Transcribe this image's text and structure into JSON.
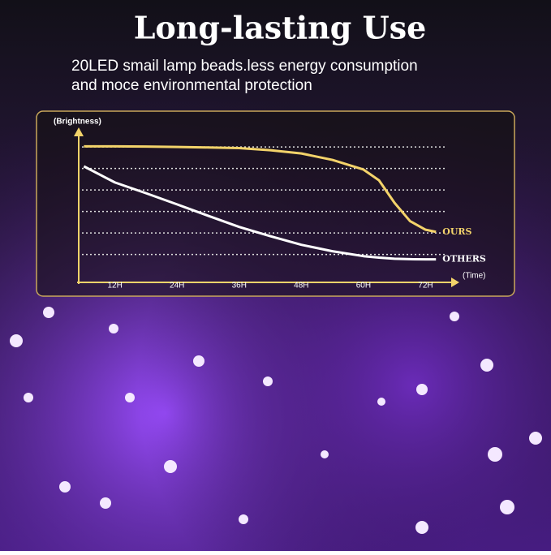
{
  "title": "Long-lasting Use",
  "subtitle": [
    "20LED smail lamp beads.less energy consumption",
    "and moce environmental protection"
  ],
  "chart_data": {
    "type": "line",
    "y_label": "(Brightness)",
    "x_label": "(Time)",
    "x": [
      6,
      12,
      18,
      24,
      30,
      36,
      42,
      48,
      54,
      60,
      63,
      66,
      69,
      72,
      74
    ],
    "xlim": [
      5,
      76
    ],
    "xticks": [
      {
        "value": 12,
        "label": "12H"
      },
      {
        "value": 24,
        "label": "24H"
      },
      {
        "value": 36,
        "label": "36H"
      },
      {
        "value": 48,
        "label": "48H"
      },
      {
        "value": 60,
        "label": "60H"
      },
      {
        "value": 72,
        "label": "72H"
      }
    ],
    "ylim": [
      -0.3,
      6.8
    ],
    "yticks": [
      1,
      2,
      3,
      4,
      5,
      6
    ],
    "grid": true,
    "series": [
      {
        "name": "OURS",
        "color": "#f3d36a",
        "values": [
          6.03,
          6.03,
          6.02,
          6.0,
          5.98,
          5.95,
          5.85,
          5.7,
          5.4,
          4.95,
          4.45,
          3.4,
          2.55,
          2.15,
          2.05
        ]
      },
      {
        "name": "OTHERS",
        "color": "#ffffff",
        "values": [
          5.1,
          4.35,
          3.85,
          3.33,
          2.8,
          2.28,
          1.85,
          1.45,
          1.15,
          0.92,
          0.85,
          0.8,
          0.78,
          0.77,
          0.77
        ]
      }
    ]
  }
}
